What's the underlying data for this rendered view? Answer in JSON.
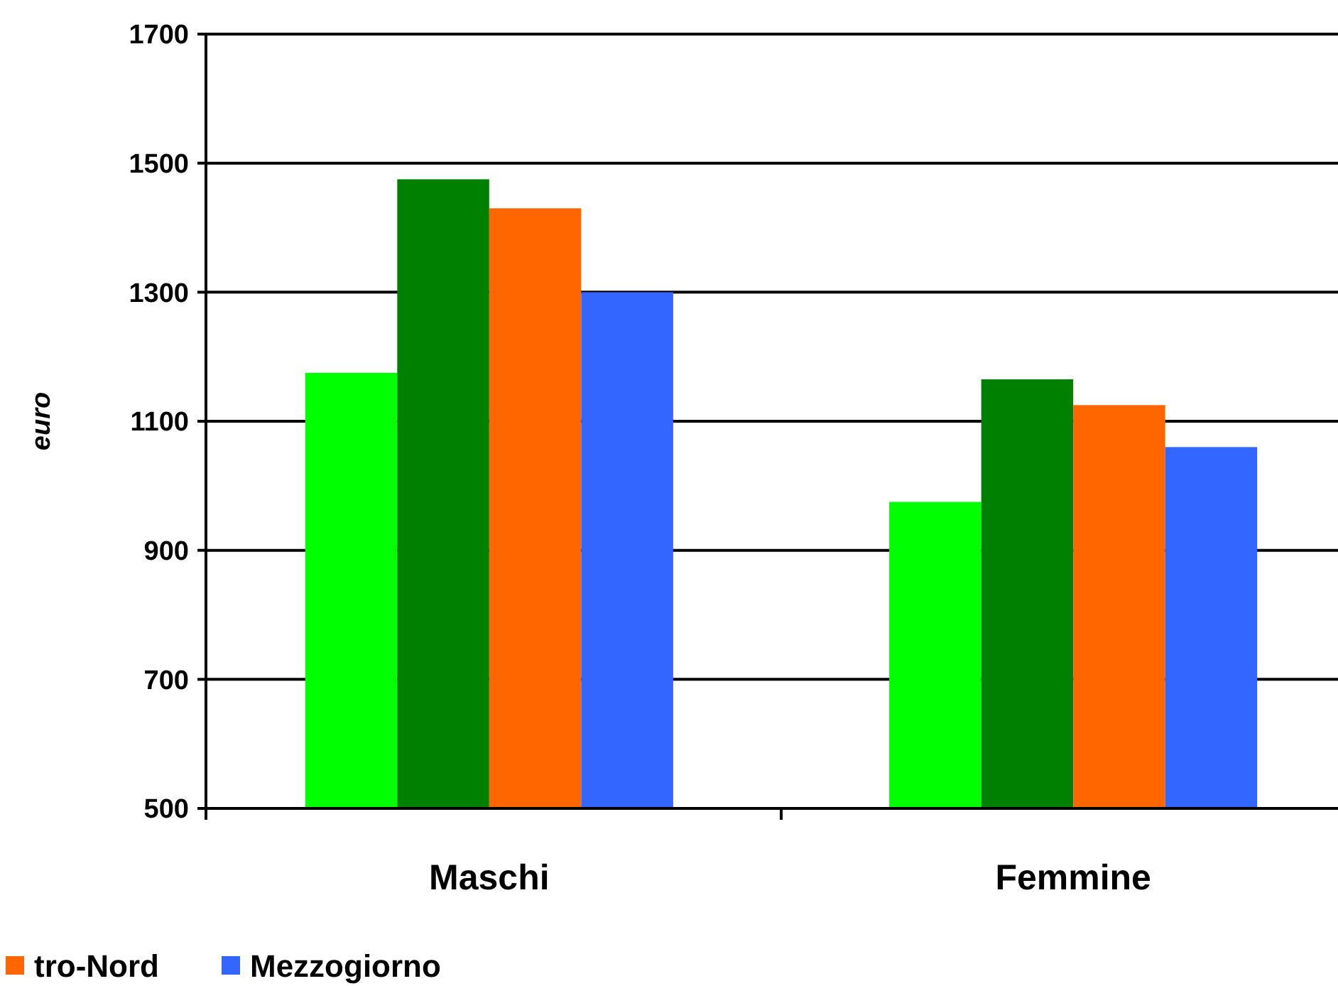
{
  "chart_data": {
    "type": "bar",
    "ylabel": "euro",
    "categories": [
      "Maschi",
      "Femmine"
    ],
    "series": [
      {
        "color": "#00ff00",
        "values": [
          1175,
          975
        ]
      },
      {
        "color": "#008000",
        "values": [
          1475,
          1165
        ]
      },
      {
        "name": "tro-Nord",
        "color": "#ff6600",
        "values": [
          1430,
          1125
        ]
      },
      {
        "name": "Mezzogiorno",
        "color": "#3366ff",
        "values": [
          1300,
          1060
        ]
      }
    ],
    "ylim": [
      500,
      1700
    ],
    "yticks": [
      500,
      700,
      900,
      1100,
      1300,
      1500,
      1700
    ],
    "grid": "y",
    "legend": "bottom"
  }
}
